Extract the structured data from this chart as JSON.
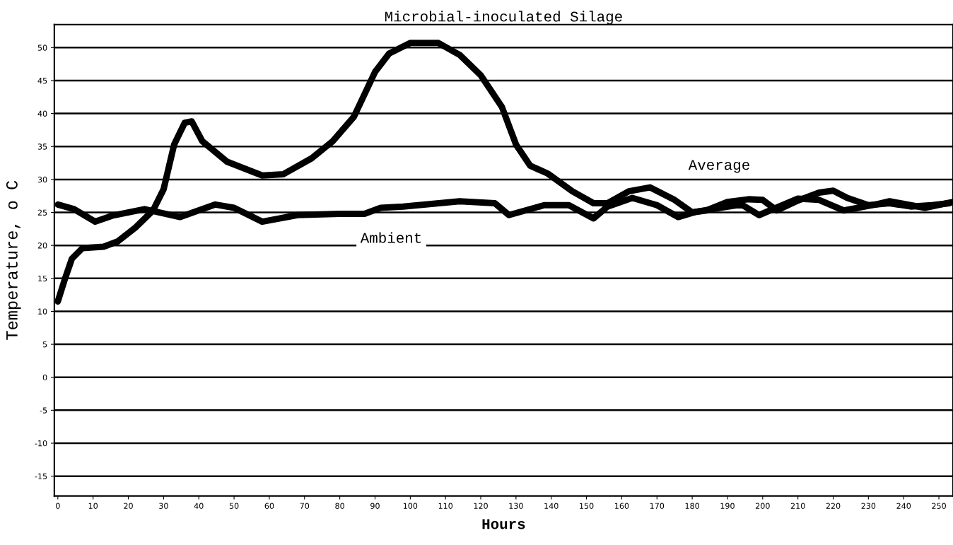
{
  "chart_data": {
    "type": "line",
    "title": "Microbial-inoculated Silage",
    "xlabel": "Hours",
    "ylabel": "Temperature, o C",
    "xlim": [
      -1,
      254
    ],
    "ylim": [
      -18,
      53.5
    ],
    "xticks": [
      0,
      10,
      20,
      30,
      40,
      50,
      60,
      70,
      80,
      90,
      100,
      110,
      120,
      130,
      140,
      150,
      160,
      170,
      180,
      190,
      200,
      210,
      220,
      230,
      240,
      250
    ],
    "yticks": [
      {
        "value": -15,
        "label": "-15"
      },
      {
        "value": -10,
        "label": "-10"
      },
      {
        "value": -5,
        "label": "-5"
      },
      0,
      5,
      10,
      15,
      20,
      25,
      30,
      35,
      40,
      45,
      50
    ],
    "grid": "y",
    "legend": false,
    "marker": "none",
    "line_style": "solid",
    "series": [
      {
        "name": "Average",
        "color": "#000000",
        "x": [
          0,
          2,
          4,
          7,
          13,
          17,
          22,
          27,
          30,
          33,
          36,
          38,
          41,
          48,
          58,
          64,
          72,
          78,
          84,
          90,
          94,
          100,
          108,
          114,
          120,
          126,
          130,
          134,
          139,
          146,
          152,
          156,
          162,
          168,
          175,
          180,
          184,
          190,
          196,
          200,
          204,
          210,
          216,
          220,
          224,
          230,
          236,
          242,
          248,
          253
        ],
        "values": [
          11.5,
          14.9,
          18,
          19.6,
          19.8,
          20.6,
          22.7,
          25.3,
          28.5,
          35.3,
          38.6,
          38.8,
          35.8,
          32.7,
          30.6,
          30.8,
          33.2,
          35.8,
          39.5,
          46.3,
          49.1,
          50.7,
          50.7,
          48.9,
          45.8,
          41,
          35.3,
          32.1,
          30.9,
          28.2,
          26.4,
          26.4,
          28.2,
          28.8,
          26.9,
          25,
          25.3,
          26.6,
          27,
          26.9,
          25.3,
          26.8,
          28,
          28.3,
          27.2,
          26.1,
          26.4,
          25.9,
          26.1,
          26.4
        ]
      },
      {
        "name": "Ambient",
        "color": "#000000",
        "x": [
          0,
          4.6,
          10.6,
          15.4,
          24.6,
          34.7,
          44.7,
          50,
          58,
          68,
          80,
          87,
          91.6,
          98,
          114,
          124,
          128,
          138,
          145,
          152,
          156,
          163,
          170,
          176,
          181,
          194,
          199,
          210,
          216,
          223,
          232,
          236,
          246,
          254
        ],
        "values": [
          26.2,
          25.5,
          23.6,
          24.5,
          25.5,
          24.3,
          26.2,
          25.7,
          23.6,
          24.6,
          24.8,
          24.8,
          25.7,
          25.9,
          26.7,
          26.4,
          24.6,
          26.1,
          26.1,
          24.1,
          25.9,
          27.2,
          26.1,
          24.3,
          25.1,
          26.2,
          24.6,
          27.1,
          26.9,
          25.3,
          26.2,
          26.7,
          25.7,
          26.6
        ]
      }
    ]
  }
}
